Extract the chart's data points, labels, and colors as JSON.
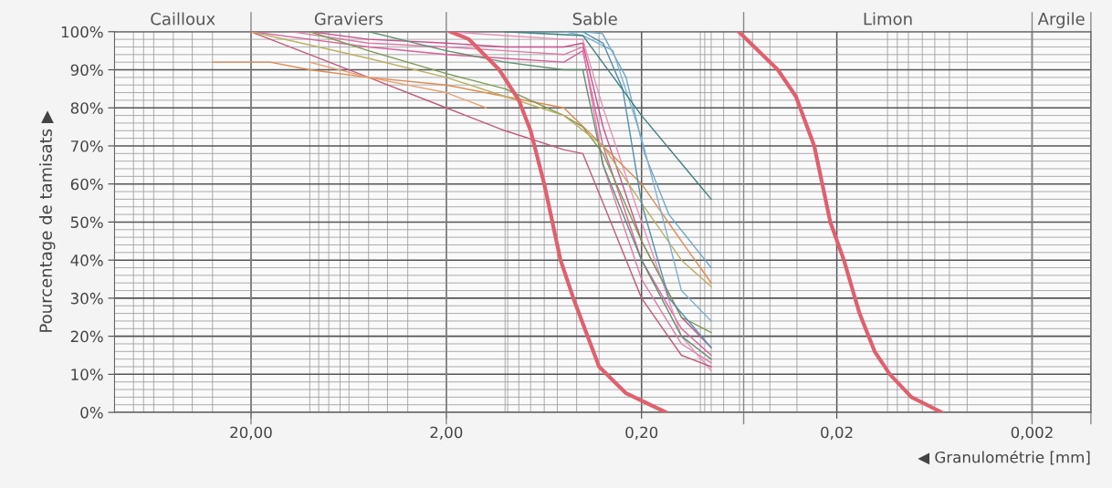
{
  "chart_data": {
    "type": "line",
    "xlabel": "◀ Granulométrie [mm]",
    "ylabel": "Pourcentage de tamisats ▶",
    "log": "x",
    "grid": true,
    "marker": "none",
    "line_style": "solid",
    "xlim": [
      100,
      0.001
    ],
    "ylim": [
      0,
      100
    ],
    "xticks": [
      {
        "value": 20,
        "label": "20,00"
      },
      {
        "value": 2,
        "label": "2,00"
      },
      {
        "value": 0.2,
        "label": "0,20"
      },
      {
        "value": 0.02,
        "label": "0,02"
      },
      {
        "value": 0.002,
        "label": "0,002"
      },
      {
        "value": 80,
        "label": null
      },
      {
        "value": 71,
        "label": null
      },
      {
        "value": 63,
        "label": null
      },
      {
        "value": 50,
        "label": null
      },
      {
        "value": 40,
        "label": null
      },
      {
        "value": 31.5,
        "label": null
      },
      {
        "value": 10,
        "label": null
      },
      {
        "value": 9,
        "label": null
      },
      {
        "value": 8,
        "label": null
      },
      {
        "value": 7,
        "label": null
      },
      {
        "value": 6.3,
        "label": null
      },
      {
        "value": 5,
        "label": null
      },
      {
        "value": 4,
        "label": null
      },
      {
        "value": 3.15,
        "label": null
      },
      {
        "value": 1,
        "label": null
      },
      {
        "value": 0.97,
        "label": null
      },
      {
        "value": 0.85,
        "label": null
      },
      {
        "value": 0.74,
        "label": null
      },
      {
        "value": 0.63,
        "label": null
      },
      {
        "value": 0.54,
        "label": null
      },
      {
        "value": 0.43,
        "label": null
      },
      {
        "value": 0.33,
        "label": null
      },
      {
        "value": 0.1,
        "label": null
      },
      {
        "value": 0.095,
        "label": null
      },
      {
        "value": 0.088,
        "label": null
      },
      {
        "value": 0.076,
        "label": null
      },
      {
        "value": 0.063,
        "label": null
      },
      {
        "value": 0.054,
        "label": null
      },
      {
        "value": 0.044,
        "label": null
      },
      {
        "value": 0.032,
        "label": null
      },
      {
        "value": 0.011,
        "label": null
      },
      {
        "value": 0.0098,
        "label": null
      },
      {
        "value": 0.0086,
        "label": null
      },
      {
        "value": 0.0073,
        "label": null
      },
      {
        "value": 0.0063,
        "label": null
      },
      {
        "value": 0.0053,
        "label": null
      },
      {
        "value": 0.0043,
        "label": null
      }
    ],
    "yticks": [
      {
        "value": 0,
        "label": "0%"
      },
      {
        "value": 10,
        "label": "10%"
      },
      {
        "value": 20,
        "label": "20%"
      },
      {
        "value": 30,
        "label": "30%"
      },
      {
        "value": 40,
        "label": "40%"
      },
      {
        "value": 50,
        "label": "50%"
      },
      {
        "value": 60,
        "label": "60%"
      },
      {
        "value": 70,
        "label": "70%"
      },
      {
        "value": 80,
        "label": "80%"
      },
      {
        "value": 90,
        "label": "90%"
      },
      {
        "value": 100,
        "label": "100%"
      },
      {
        "value": 2,
        "label": null
      },
      {
        "value": 4,
        "label": null
      },
      {
        "value": 6,
        "label": null
      },
      {
        "value": 8,
        "label": null
      },
      {
        "value": 12,
        "label": null
      },
      {
        "value": 14,
        "label": null
      },
      {
        "value": 16,
        "label": null
      },
      {
        "value": 18,
        "label": null
      },
      {
        "value": 22,
        "label": null
      },
      {
        "value": 24,
        "label": null
      },
      {
        "value": 26,
        "label": null
      },
      {
        "value": 28,
        "label": null
      },
      {
        "value": 32,
        "label": null
      },
      {
        "value": 34,
        "label": null
      },
      {
        "value": 36,
        "label": null
      },
      {
        "value": 38,
        "label": null
      },
      {
        "value": 42,
        "label": null
      },
      {
        "value": 44,
        "label": null
      },
      {
        "value": 46,
        "label": null
      },
      {
        "value": 48,
        "label": null
      },
      {
        "value": 52,
        "label": null
      },
      {
        "value": 54,
        "label": null
      },
      {
        "value": 56,
        "label": null
      },
      {
        "value": 58,
        "label": null
      },
      {
        "value": 62,
        "label": null
      },
      {
        "value": 64,
        "label": null
      },
      {
        "value": 66,
        "label": null
      },
      {
        "value": 68,
        "label": null
      },
      {
        "value": 72,
        "label": null
      },
      {
        "value": 74,
        "label": null
      },
      {
        "value": 76,
        "label": null
      },
      {
        "value": 78,
        "label": null
      },
      {
        "value": 82,
        "label": null
      },
      {
        "value": 84,
        "label": null
      },
      {
        "value": 86,
        "label": null
      },
      {
        "value": 88,
        "label": null
      },
      {
        "value": 92,
        "label": null
      },
      {
        "value": 94,
        "label": null
      },
      {
        "value": 96,
        "label": null
      },
      {
        "value": 98,
        "label": null
      }
    ],
    "bands": [
      {
        "axis": "x",
        "from": 100,
        "to": 20,
        "label": "Cailloux",
        "color": "#fafafa"
      },
      {
        "axis": "x",
        "from": 20,
        "to": 2,
        "label": "Graviers",
        "color": "#fafafa"
      },
      {
        "axis": "x",
        "from": 2,
        "to": 0.06,
        "label": "Sable",
        "color": "#fafafa"
      },
      {
        "axis": "x",
        "from": 0.06,
        "to": 0.002,
        "label": "Limon",
        "color": "#fafafa"
      },
      {
        "axis": "x",
        "from": 0.002,
        "to": 0.001,
        "label": "Argile",
        "color": "#fafafa"
      }
    ],
    "series": [
      {
        "color": "#e0606e",
        "x": [
          1.9,
          1.53,
          1.07,
          0.85,
          0.74,
          0.63,
          0.52,
          0.44,
          0.33,
          0.24,
          0.15
        ],
        "values": [
          100,
          98,
          90,
          82,
          74,
          60,
          40,
          29,
          12,
          5,
          0
        ]
      },
      {
        "color": "#e0606e",
        "x": [
          0.0636,
          0.0401,
          0.0324,
          0.0261,
          0.0216,
          0.0184,
          0.0153,
          0.0128,
          0.0107,
          0.0083,
          0.0058
        ],
        "values": [
          100,
          90,
          83,
          70,
          50,
          40,
          26,
          16,
          10,
          4,
          0
        ]
      },
      {
        "color": "#d9609a",
        "x": [
          20,
          10,
          5,
          2,
          1,
          0.5,
          0.4,
          0.315,
          0.2,
          0.125,
          0.088
        ],
        "values": [
          100,
          98,
          96,
          94,
          93,
          92,
          95,
          70,
          40,
          22,
          15
        ]
      },
      {
        "color": "#e07aa8",
        "x": [
          12.5,
          5,
          2,
          1,
          0.5,
          0.4,
          0.315,
          0.2,
          0.125,
          0.088
        ],
        "values": [
          100,
          97,
          96,
          95,
          94,
          96,
          65,
          35,
          18,
          13
        ]
      },
      {
        "color": "#c8508a",
        "x": [
          10,
          5,
          2,
          1,
          0.5,
          0.4,
          0.315,
          0.2,
          0.125,
          0.088
        ],
        "values": [
          100,
          98,
          97,
          96,
          96,
          97,
          75,
          45,
          25,
          17
        ]
      },
      {
        "color": "#e890b8",
        "x": [
          2,
          1,
          0.5,
          0.4,
          0.315,
          0.2,
          0.125,
          0.088
        ],
        "values": [
          100,
          99,
          98,
          98,
          80,
          50,
          20,
          11
        ]
      },
      {
        "color": "#c45a7a",
        "x": [
          20,
          5,
          2,
          1,
          0.5,
          0.4,
          0.315,
          0.2,
          0.125,
          0.088
        ],
        "values": [
          100,
          88,
          80,
          74,
          69,
          68,
          55,
          30,
          15,
          12
        ]
      },
      {
        "color": "#e08a50",
        "x": [
          31.5,
          16,
          10,
          5,
          2,
          1,
          0.5,
          0.315,
          0.2,
          0.125,
          0.088
        ],
        "values": [
          92,
          92,
          90,
          88,
          86,
          83,
          80,
          70,
          60,
          45,
          34
        ]
      },
      {
        "color": "#e8a070",
        "x": [
          10,
          5,
          2,
          1.25
        ],
        "values": [
          92,
          88,
          84,
          80
        ]
      },
      {
        "color": "#7a9a50",
        "x": [
          10,
          5,
          2,
          1,
          0.5,
          0.4,
          0.315,
          0.2,
          0.125,
          0.088
        ],
        "values": [
          100,
          95,
          89,
          85,
          78,
          75,
          68,
          45,
          25,
          21
        ]
      },
      {
        "color": "#5f9070",
        "x": [
          5,
          2,
          1,
          0.5,
          0.4,
          0.315,
          0.2,
          0.125,
          0.088
        ],
        "values": [
          100,
          95,
          92,
          90,
          90,
          65,
          40,
          20,
          14
        ]
      },
      {
        "color": "#b8b060",
        "x": [
          20,
          5,
          2,
          1,
          0.5,
          0.315,
          0.2,
          0.125,
          0.088
        ],
        "values": [
          100,
          93,
          88,
          83,
          78,
          70,
          55,
          40,
          33
        ]
      },
      {
        "color": "#6aa8c8",
        "x": [
          0.8,
          0.4,
          0.317,
          0.24,
          0.193,
          0.145,
          0.088
        ],
        "values": [
          100,
          100,
          99.5,
          88,
          68,
          52,
          38
        ]
      },
      {
        "color": "#80b0d0",
        "x": [
          0.5,
          0.4,
          0.28,
          0.2,
          0.145,
          0.125,
          0.088
        ],
        "values": [
          100,
          99,
          95,
          72,
          45,
          32,
          24
        ]
      },
      {
        "color": "#5090b0",
        "x": [
          0.4,
          0.315,
          0.25,
          0.2,
          0.145,
          0.088
        ],
        "values": [
          100,
          97,
          85,
          55,
          30,
          17
        ]
      },
      {
        "color": "#3f7f80",
        "x": [
          1,
          0.4,
          0.2,
          0.088
        ],
        "values": [
          100,
          99,
          78,
          56
        ]
      }
    ]
  }
}
